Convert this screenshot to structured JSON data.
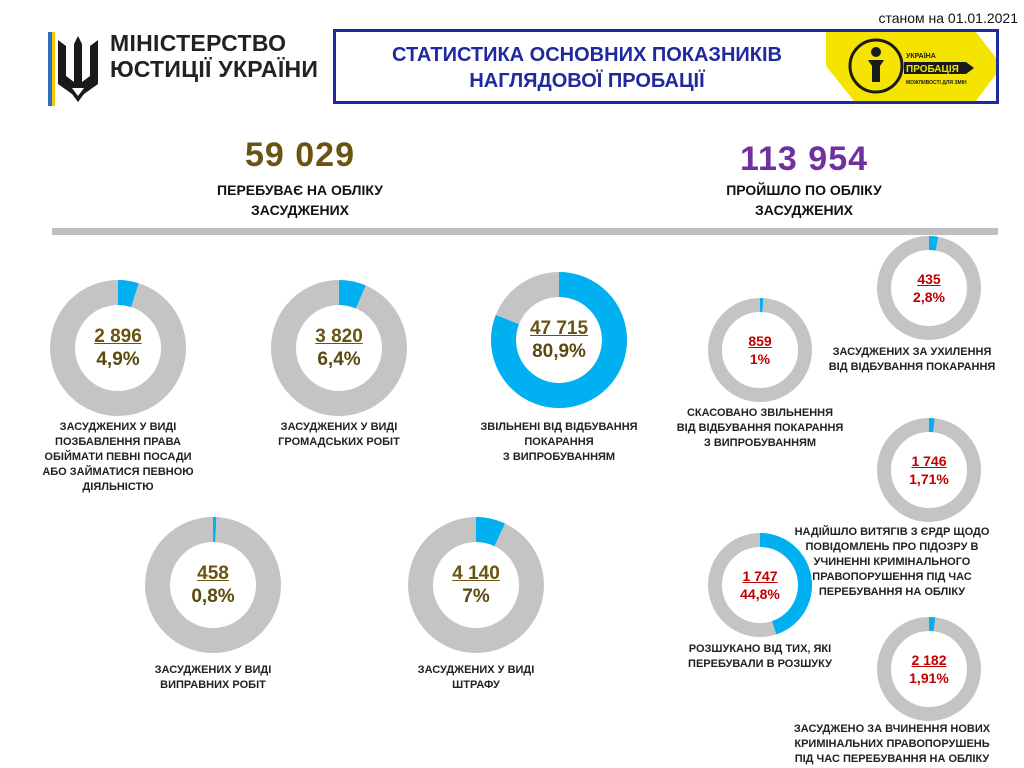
{
  "header": {
    "date": "станом на 01.01.2021",
    "ministry_line1": "МІНІСТЕРСТВО",
    "ministry_line2": "ЮСТИЦІЇ УКРАЇНИ",
    "title_line1": "СТАТИСТИКА ОСНОВНИХ ПОКАЗНИКІВ",
    "title_line2": "НАГЛЯДОВОЇ ПРОБАЦІЇ",
    "logo_line1": "УКРАЇНА",
    "logo_line2": "ПРОБАЦІЯ",
    "logo_line3": "МОЖЛИВОСТІ ДЛЯ ЗМІН"
  },
  "colors": {
    "accent": "#1f2a9e",
    "logo_yellow": "#f5e400",
    "ring_gray": "#c4c4c4",
    "ring_blue": "#00b0f0",
    "left_value": "#6b5410",
    "right_value": "#c00000",
    "total_left": "#6b5410",
    "total_right": "#7030a0"
  },
  "totals": {
    "left_value": "59 029",
    "left_label_line1": "ПЕРЕБУВАЄ НА ОБЛІКУ",
    "left_label_line2": "ЗАСУДЖЕНИХ",
    "right_value": "113 954",
    "right_label_line1": "ПРОЙШЛО ПО ОБЛІКУ",
    "right_label_line2": "ЗАСУДЖЕНИХ"
  },
  "chart_data": {
    "type": "pie",
    "donuts": [
      {
        "value": "2 896",
        "percent_label": "4,9%",
        "fraction": 0.049,
        "caption": [
          "ЗАСУДЖЕНИХ У ВИДІ",
          "ПОЗБАВЛЕННЯ ПРАВА",
          "ОБІЙМАТИ ПЕВНІ ПОСАДИ",
          "АБО ЗАЙМАТИСЯ ПЕВНОЮ",
          "ДІЯЛЬНІСТЮ"
        ]
      },
      {
        "value": "3 820",
        "percent_label": "6,4%",
        "fraction": 0.064,
        "caption": [
          "ЗАСУДЖЕНИХ У ВИДІ",
          "ГРОМАДСЬКИХ РОБІТ"
        ]
      },
      {
        "value": "47 715",
        "percent_label": "80,9%",
        "fraction": 0.809,
        "caption": [
          "ЗВІЛЬНЕНІ ВІД ВІДБУВАННЯ",
          "ПОКАРАННЯ",
          "З ВИПРОБУВАННЯМ"
        ]
      },
      {
        "value": "458",
        "percent_label": "0,8%",
        "fraction": 0.008,
        "caption": [
          "ЗАСУДЖЕНИХ У ВИДІ",
          "ВИПРАВНИХ РОБІТ"
        ]
      },
      {
        "value": "4 140",
        "percent_label": "7%",
        "fraction": 0.07,
        "caption": [
          "ЗАСУДЖЕНИХ У ВИДІ",
          "ШТРАФУ"
        ]
      },
      {
        "value": "859",
        "percent_label": "1%",
        "fraction": 0.01,
        "caption": [
          "СКАСОВАНО ЗВІЛЬНЕННЯ",
          "ВІД ВІДБУВАННЯ ПОКАРАННЯ",
          "З ВИПРОБУВАННЯМ"
        ]
      },
      {
        "value": "435",
        "percent_label": "2,8%",
        "fraction": 0.028,
        "caption": [
          "ЗАСУДЖЕНИХ ЗА УХИЛЕННЯ",
          "ВІД ВІДБУВАННЯ ПОКАРАННЯ"
        ]
      },
      {
        "value": "1 746",
        "percent_label": "1,71%",
        "fraction": 0.0171,
        "caption": [
          "НАДІЙШЛО ВИТЯГІВ З ЄРДР ЩОДО",
          "ПОВІДОМЛЕНЬ ПРО ПІДОЗРУ В",
          "УЧИНЕННІ КРИМІНАЛЬНОГО",
          "ПРАВОПОРУШЕННЯ ПІД ЧАС",
          "ПЕРЕБУВАННЯ НА ОБЛІКУ"
        ]
      },
      {
        "value": "1 747",
        "percent_label": "44,8%",
        "fraction": 0.448,
        "caption": [
          "РОЗШУКАНО ВІД ТИХ, ЯКІ",
          "ПЕРЕБУВАЛИ В РОЗШУКУ"
        ]
      },
      {
        "value": "2 182",
        "percent_label": "1,91%",
        "fraction": 0.0191,
        "caption": [
          "ЗАСУДЖЕНО ЗА ВЧИНЕННЯ НОВИХ",
          "КРИМІНАЛЬНИХ ПРАВОПОРУШЕНЬ",
          "ПІД ЧАС ПЕРЕБУВАННЯ НА ОБЛІКУ"
        ]
      }
    ]
  }
}
